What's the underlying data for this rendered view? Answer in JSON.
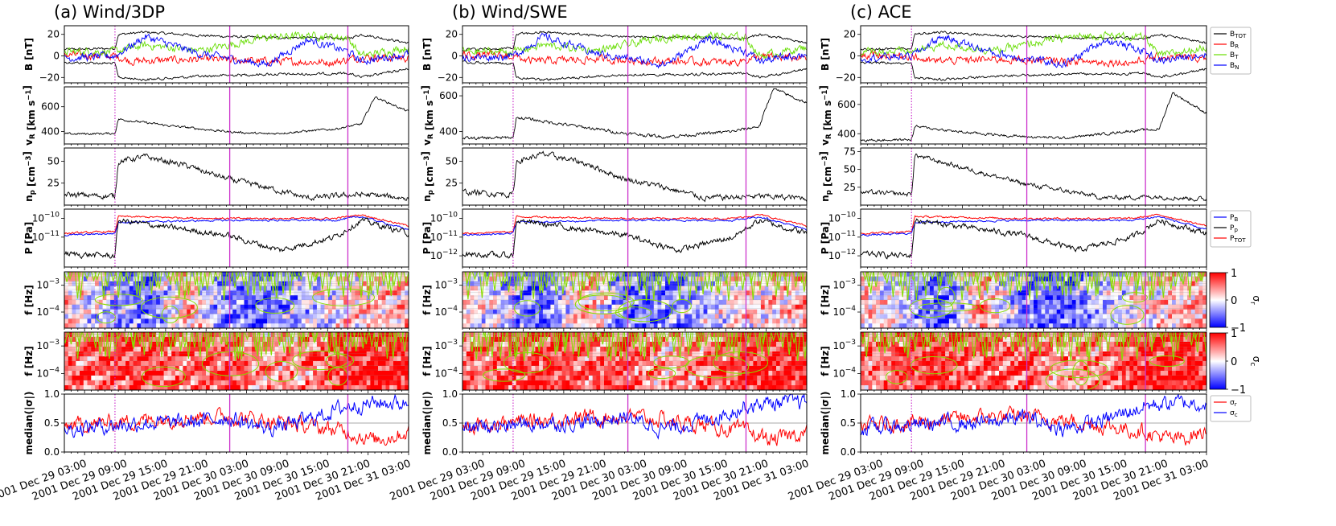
{
  "figure": {
    "panels": [
      {
        "title": "(a) Wind/3DP",
        "show_ylabels": true
      },
      {
        "title": "(b) Wind/SWE",
        "show_ylabels": true
      },
      {
        "title": "(c) ACE",
        "show_ylabels": true
      }
    ],
    "row_labels": [
      "B [nT]",
      "v_R [km s^-1]",
      "n_p [cm^-3]",
      "P [Pa]",
      "f [Hz]",
      "f [Hz]",
      "median(|σ|)"
    ],
    "x_tick_labels": [
      "2001 Dec 29 03:00",
      "2001 Dec 29 09:00",
      "2001 Dec 29 15:00",
      "2001 Dec 29 21:00",
      "2001 Dec 30 03:00",
      "2001 Dec 30 09:00",
      "2001 Dec 30 15:00",
      "2001 Dec 30 21:00",
      "2001 Dec 31 03:00"
    ],
    "vertical_markers": {
      "dotted": [
        "2001 Dec 29 07:30"
      ],
      "solid": [
        "2001 Dec 30 00:30",
        "2001 Dec 30 18:00"
      ],
      "color": "#cc33cc"
    },
    "legend_B": [
      {
        "label": "B_TOT",
        "color": "#000000"
      },
      {
        "label": "B_R",
        "color": "#ff0000"
      },
      {
        "label": "B_T",
        "color": "#66dd00"
      },
      {
        "label": "B_N",
        "color": "#0000ff"
      }
    ],
    "legend_P": [
      {
        "label": "P_B",
        "color": "#0000ff"
      },
      {
        "label": "P_p",
        "color": "#000000"
      },
      {
        "label": "P_TOT",
        "color": "#ff0000"
      }
    ],
    "legend_sigma": [
      {
        "label": "σ_r",
        "color": "#ff0000"
      },
      {
        "label": "σ_c",
        "color": "#0000ff"
      }
    ],
    "colorbars": [
      {
        "label": "σ_r",
        "ticks": [
          "1",
          "0",
          "−1"
        ]
      },
      {
        "label": "σ_c",
        "ticks": [
          "1",
          "0",
          "−1"
        ]
      }
    ]
  },
  "chart_data": [
    {
      "type": "line",
      "row": 0,
      "title": "B [nT]",
      "xlabel": "",
      "ylabel": "B [nT]",
      "x_range_hours": [
        0,
        51
      ],
      "ylim": [
        -25,
        28
      ],
      "yticks_by_panel": [
        [
          -20,
          0,
          20
        ],
        [
          -20,
          0,
          20
        ],
        [
          -20,
          0,
          20
        ]
      ],
      "series": [
        {
          "name": "B_TOT",
          "color": "#000000",
          "x": [
            0,
            7.5,
            8,
            12,
            20,
            24,
            30,
            36,
            42,
            44,
            51
          ],
          "values": [
            6,
            7,
            20,
            22,
            19,
            18,
            17,
            17,
            16,
            20,
            12
          ]
        },
        {
          "name": "B_R",
          "color": "#ff0000",
          "x": [
            0,
            7.5,
            10,
            20,
            30,
            40,
            44,
            51
          ],
          "values": [
            1,
            0,
            -5,
            -3,
            -5,
            -6,
            -1,
            -2
          ]
        },
        {
          "name": "B_T",
          "color": "#66dd00",
          "x": [
            0,
            7.5,
            12,
            20,
            30,
            36,
            42,
            44,
            51
          ],
          "values": [
            4,
            4,
            10,
            5,
            17,
            19,
            17,
            0,
            8
          ]
        },
        {
          "name": "B_N",
          "color": "#0000ff",
          "x": [
            0,
            7.5,
            12,
            20,
            30,
            36,
            42,
            44,
            51
          ],
          "values": [
            -2,
            0,
            18,
            2,
            -8,
            15,
            4,
            -5,
            2
          ]
        }
      ]
    },
    {
      "type": "line",
      "row": 1,
      "title": "v_R [km s^-1]",
      "ylabel": "v_R [km s^-1]",
      "ylim_by_panel": [
        [
          300,
          760
        ],
        [
          330,
          650
        ],
        [
          330,
          720
        ]
      ],
      "yticks_by_panel": [
        [
          400,
          600
        ],
        [
          400,
          600
        ],
        [
          400,
          600
        ]
      ],
      "series": [
        {
          "name": "v_R",
          "color": "#000000",
          "x": [
            0,
            7.5,
            8,
            15,
            24,
            30,
            40,
            44,
            46,
            51
          ],
          "values_by_panel": [
            [
              380,
              385,
              500,
              450,
              400,
              380,
              420,
              460,
              680,
              560
            ],
            [
              360,
              365,
              480,
              440,
              390,
              370,
              400,
              430,
              640,
              560
            ],
            [
              355,
              360,
              450,
              410,
              380,
              370,
              420,
              430,
              680,
              540
            ]
          ]
        }
      ]
    },
    {
      "type": "line",
      "row": 2,
      "title": "n_p [cm^-3]",
      "ylabel": "n_p [cm^-3]",
      "ylim_by_panel": [
        [
          0,
          65
        ],
        [
          0,
          65
        ],
        [
          0,
          80
        ]
      ],
      "yticks_by_panel": [
        [
          25,
          50
        ],
        [
          25,
          50
        ],
        [
          25,
          50,
          75
        ]
      ],
      "series": [
        {
          "name": "n_p",
          "color": "#000000",
          "x": [
            0,
            7.5,
            8,
            12,
            18,
            24,
            30,
            36,
            44,
            51
          ],
          "values_by_panel": [
            [
              12,
              10,
              50,
              55,
              45,
              30,
              20,
              8,
              12,
              8
            ],
            [
              15,
              12,
              50,
              58,
              48,
              30,
              20,
              8,
              10,
              8
            ],
            [
              18,
              15,
              70,
              60,
              45,
              30,
              20,
              10,
              12,
              8
            ]
          ]
        }
      ]
    },
    {
      "type": "line",
      "row": 3,
      "title": "P [Pa]",
      "ylabel": "P [Pa]",
      "yscale": "log",
      "ylim_log10": [
        -12.6,
        -9.5
      ],
      "ytick_labels_by_panel": [
        [
          "10^-10",
          "10^-11"
        ],
        [
          "10^-10",
          "10^-11",
          "10^-12"
        ],
        [
          "10^-10",
          "10^-11",
          "10^-12"
        ]
      ],
      "series": [
        {
          "name": "P_TOT",
          "color": "#ff0000",
          "x": [
            0,
            7.5,
            8,
            24,
            40,
            44,
            51
          ],
          "log10_values": [
            -10.8,
            -10.7,
            -9.9,
            -10.0,
            -10.0,
            -9.8,
            -10.4
          ]
        },
        {
          "name": "P_B",
          "color": "#0000ff",
          "x": [
            0,
            7.5,
            8,
            24,
            40,
            44,
            51
          ],
          "log10_values": [
            -10.9,
            -10.8,
            -10.2,
            -10.1,
            -10.1,
            -9.9,
            -10.6
          ]
        },
        {
          "name": "P_p",
          "color": "#000000",
          "x": [
            0,
            7.5,
            8,
            24,
            32,
            40,
            44,
            51
          ],
          "log10_values": [
            -11.9,
            -12.0,
            -10.1,
            -10.9,
            -11.7,
            -11.0,
            -10.1,
            -10.8
          ]
        }
      ]
    },
    {
      "type": "heatmap",
      "row": 4,
      "title": "σ_r",
      "ylabel": "f [Hz]",
      "yscale": "log",
      "ylim_log10": [
        -4.6,
        -2.5
      ],
      "ytick_labels": [
        "10^-3",
        "10^-4"
      ],
      "zlim": [
        -1,
        1
      ],
      "colormap": [
        "#0000ff",
        "#ffffff",
        "#ff0000"
      ],
      "contour_color": "#88dd00",
      "x": [
        0,
        7.5,
        12,
        18,
        24,
        30,
        36,
        42,
        51
      ],
      "values": [
        0.2,
        -0.3,
        -0.7,
        0.4,
        -0.5,
        -0.6,
        -0.2,
        0.1,
        0.3
      ]
    },
    {
      "type": "heatmap",
      "row": 5,
      "title": "σ_c",
      "ylabel": "f [Hz]",
      "yscale": "log",
      "ylim_log10": [
        -4.6,
        -2.5
      ],
      "ytick_labels": [
        "10^-3",
        "10^-4"
      ],
      "zlim": [
        -1,
        1
      ],
      "colormap": [
        "#0000ff",
        "#ffffff",
        "#ff0000"
      ],
      "contour_color": "#88dd00",
      "x": [
        0,
        7.5,
        12,
        18,
        24,
        30,
        36,
        42,
        51
      ],
      "values": [
        0.5,
        0.7,
        0.8,
        0.6,
        0.7,
        0.3,
        0.5,
        0.9,
        0.9
      ]
    },
    {
      "type": "line",
      "row": 6,
      "title": "median(|σ|)",
      "ylabel": "median(|σ|)",
      "ylim": [
        0.0,
        1.0
      ],
      "yticks": [
        0.0,
        0.5,
        1.0
      ],
      "hline": 0.5,
      "series": [
        {
          "name": "σ_r",
          "color": "#ff0000",
          "x": [
            0,
            6,
            12,
            18,
            24,
            30,
            36,
            42,
            46,
            51
          ],
          "values": [
            0.45,
            0.5,
            0.55,
            0.6,
            0.62,
            0.55,
            0.45,
            0.35,
            0.2,
            0.35
          ]
        },
        {
          "name": "σ_c",
          "color": "#0000ff",
          "x": [
            0,
            6,
            12,
            18,
            24,
            30,
            36,
            42,
            46,
            51
          ],
          "values": [
            0.4,
            0.45,
            0.5,
            0.5,
            0.6,
            0.4,
            0.55,
            0.8,
            0.85,
            0.85
          ]
        }
      ]
    }
  ]
}
